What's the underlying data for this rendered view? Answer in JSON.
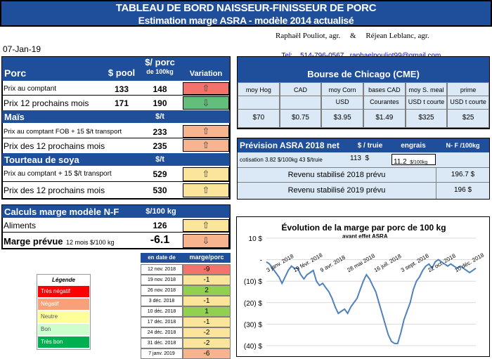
{
  "header": {
    "title_line1": "TABLEAU DE BORD NAISSEUR-FINISSEUR DE PORC",
    "title_line2": "Estimation marge ASRA - modèle 2014 actualisé",
    "date": "07-Jan-19",
    "authors": "Raphaël Pouliot, agr.     &     Réjean Leblanc, agr.",
    "phone_label": "Tel:",
    "phone": "514-796-0567",
    "email": "raphaelpouliot99@gmail.com"
  },
  "porc": {
    "title": "Porc",
    "col_pool": "$ pool",
    "col_per": "$/ porc",
    "col_per_sub": "de 100kg",
    "col_var": "Variation",
    "rows": [
      {
        "label": "Prix au comptant",
        "pool": "133",
        "per": "148",
        "arrow": "⇧",
        "color": "#f4726c"
      },
      {
        "label": "Prix 12 prochains mois",
        "pool": "171",
        "per": "190",
        "arrow": "⇩",
        "color": "#63be7b"
      }
    ]
  },
  "mais": {
    "title": "Maïs",
    "unit": "$/t",
    "rows": [
      {
        "label": "Prix au comptant FOB + 15 $/t transport",
        "value": "233",
        "arrow": "⇧",
        "color": "#f8b48e"
      },
      {
        "label": "Prix des 12 prochains mois",
        "value": "235",
        "arrow": "⇧",
        "color": "#f8b48e"
      }
    ]
  },
  "soya": {
    "title": "Tourteau de soya",
    "unit": "$/t",
    "rows": [
      {
        "label": "Prix au comptant + 15 $/t transport",
        "value": "529",
        "arrow": "⇧",
        "color": "#fbe59a"
      },
      {
        "label": "Prix des 12 prochains mois",
        "value": "530",
        "arrow": "⇧",
        "color": "#fbe59a"
      }
    ]
  },
  "calculs": {
    "title": "Calculs marge  modèle N-F",
    "unit": "$/100 kg",
    "aliments_label": "Aliments",
    "aliments_value": "126",
    "aliments_arrow": "⇧",
    "marge_label": "Marge prévue",
    "marge_sub": "12 mois  $/100 kg",
    "marge_value": "-6.1",
    "marge_arrow": "⇩"
  },
  "legend": {
    "title": "Légende",
    "items": [
      {
        "label": "Très négatif",
        "color": "#ff0000"
      },
      {
        "label": "Négatif",
        "color": "#f8a07a"
      },
      {
        "label": "Neutre",
        "color": "#ffff99"
      },
      {
        "label": "Bon",
        "color": "#ccffcc"
      },
      {
        "label": "Très bon",
        "color": "#00b050"
      }
    ]
  },
  "history": {
    "col_date": "en date de",
    "col_marge": "marge/porc",
    "rows": [
      {
        "date": "12 nov. 2018",
        "value": "-9",
        "color": "#f4726c"
      },
      {
        "date": "19 nov. 2018",
        "value": "-1",
        "color": "#fbe59a"
      },
      {
        "date": "26 nov. 2018",
        "value": "2",
        "color": "#92d050"
      },
      {
        "date": "3 déc. 2018",
        "value": "-1",
        "color": "#fbe59a"
      },
      {
        "date": "10 déc. 2018",
        "value": "1",
        "color": "#92d050"
      },
      {
        "date": "17 déc. 2018",
        "value": "-1",
        "color": "#fbe59a"
      },
      {
        "date": "24 déc. 2018",
        "value": "-2",
        "color": "#fbe59a"
      },
      {
        "date": "31 déc. 2018",
        "value": "-2",
        "color": "#fbe59a"
      },
      {
        "date": "7 janv. 2019",
        "value": "-6",
        "color": "#f8b48e"
      }
    ]
  },
  "chicago": {
    "title": "Bourse de Chicago (CME)",
    "cols": [
      {
        "h": "moy Hog",
        "sub": "",
        "val": "$70"
      },
      {
        "h": "CAD",
        "sub": "",
        "val": "$0.75"
      },
      {
        "h": "moy Corn",
        "sub": "USD",
        "val": "$3.95"
      },
      {
        "h": "bases CAD",
        "sub": "Courantes",
        "val": "$1.49"
      },
      {
        "h": "moy S. meal",
        "sub": "USD t courte",
        "val": "$325"
      },
      {
        "h": "prime",
        "sub": "USD t courte",
        "val": "$25"
      }
    ]
  },
  "asra": {
    "title": "Prévision ASRA 2018 net",
    "col_truie": "$ / truie",
    "col_engrais": "engrais",
    "col_nf": "N- F /100kg",
    "cotisation_label": "cotisation 3.82 $/100kg 43 $/truie",
    "truie_value": "113",
    "truie_unit": "$",
    "engrais_value": "11.2",
    "engrais_unit": "$/100kg",
    "rev2018_label": "Revenu stabilisé 2018 prévu",
    "rev2018_value": "196.7 $",
    "rev2019_label": "Revenu stabilisé 2019 prévu",
    "rev2019_value": "196 $"
  },
  "chart_data": {
    "type": "line",
    "title": "Évolution de la marge par porc de 100 kg",
    "subtitle": "avant effet ASRA",
    "ylim": [
      -40,
      10
    ],
    "yticks": [
      "10 $",
      "-",
      "(10) $",
      "(20) $",
      "(30) $",
      "(40) $"
    ],
    "xticks": [
      "3 janv. 2018",
      "19 févr. 2018",
      "9 avr. 2018",
      "28 mai 2018",
      "16 juil. 2018",
      "3 sept. 2018",
      "22 oct. 2018",
      "10 déc. 2018"
    ],
    "series": [
      {
        "values": [
          -1,
          -2,
          -4,
          -6,
          -8,
          -11,
          -8,
          -5,
          -3,
          -4,
          -4,
          -7,
          -9,
          -7,
          -6,
          -5,
          -10,
          -12,
          -11,
          -13,
          -15,
          -18,
          -22,
          -25,
          -24,
          -23,
          -25,
          -22,
          -20,
          -18,
          -14,
          -10,
          -7,
          -9,
          -12,
          -15,
          -20,
          -25,
          -30,
          -35,
          -38,
          -39,
          -39,
          -34,
          -28,
          -24,
          -20,
          -14,
          -10,
          -8,
          -5,
          -3,
          -2,
          -4,
          -1,
          0,
          -1,
          -2,
          -3,
          -2,
          -3,
          -4,
          -3,
          -4,
          -5,
          -6,
          -5,
          -4
        ]
      }
    ]
  },
  "colors": {
    "navy": "#1f4e9a",
    "lightblue": "#dbe9f6"
  }
}
